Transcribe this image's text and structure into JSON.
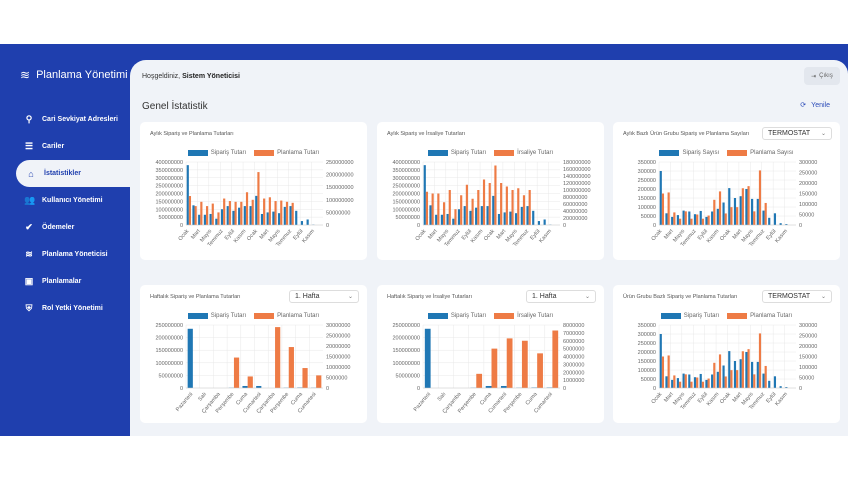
{
  "app": {
    "title": "Planlama Yönetimi"
  },
  "sidebar": {
    "items": [
      {
        "label": "Cari Sevkiyat Adresleri",
        "icon": "user-location-icon",
        "glyph": "⚲"
      },
      {
        "label": "Cariler",
        "icon": "list-icon",
        "glyph": "☰"
      },
      {
        "label": "İstatistikler",
        "icon": "home-icon",
        "glyph": "⌂",
        "active": true
      },
      {
        "label": "Kullanıcı Yönetimi",
        "icon": "users-icon",
        "glyph": "👥"
      },
      {
        "label": "Ödemeler",
        "icon": "check-circle-icon",
        "glyph": "✔"
      },
      {
        "label": "Planlama Yöneticisi",
        "icon": "sliders-icon",
        "glyph": "≋"
      },
      {
        "label": "Planlamalar",
        "icon": "calendar-icon",
        "glyph": "▣"
      },
      {
        "label": "Rol Yetki Yönetimi",
        "icon": "shield-icon",
        "glyph": "⛨"
      }
    ]
  },
  "header": {
    "welcome": "Hoşgeldiniz,",
    "user": "Sistem Yöneticisi",
    "logout": "Çıkış"
  },
  "main": {
    "title": "Genel İstatistik",
    "refresh": "Yenile"
  },
  "colors": {
    "blue": "#1f77b4",
    "orange": "#ee7b45",
    "brand": "#1f3fae"
  },
  "chart_data": [
    {
      "type": "bar",
      "title": "Aylık Sipariş ve Planlama Tutarları",
      "categories": [
        "Ocak",
        "Şubat",
        "Mart",
        "Nisan",
        "Mayıs",
        "Haziran",
        "Temmuz",
        "Ağustos",
        "Eylül",
        "Ekim",
        "Kasım",
        "Aralık",
        "Ocak",
        "Şubat",
        "Mart",
        "Nisan",
        "Mayıs",
        "Haziran",
        "Temmuz",
        "Ağustos",
        "Eylül",
        "Ekim",
        "Kasım",
        "Aralık"
      ],
      "y_left": {
        "min": 0,
        "max": 400000000,
        "step": 50000000
      },
      "y_right": {
        "min": 0,
        "max": 250000000,
        "step": 50000000
      },
      "series": [
        {
          "name": "Sipariş Tutarı",
          "axis": "left",
          "values": [
            380000000,
            125000000,
            65000000,
            65000000,
            70000000,
            40000000,
            100000000,
            120000000,
            90000000,
            110000000,
            120000000,
            120000000,
            185000000,
            70000000,
            80000000,
            85000000,
            75000000,
            115000000,
            120000000,
            90000000,
            25000000,
            35000000,
            2000000,
            0
          ]
        },
        {
          "name": "Planlama Tutarı",
          "axis": "right",
          "values": [
            115000000,
            75000000,
            92000000,
            75000000,
            85000000,
            50000000,
            105000000,
            95000000,
            92000000,
            92000000,
            130000000,
            100000000,
            210000000,
            105000000,
            110000000,
            95000000,
            97000000,
            92000000,
            88000000,
            0,
            0,
            0,
            0,
            0
          ]
        }
      ]
    },
    {
      "type": "bar",
      "title": "Aylık Sipariş ve İrsaliye Tutarları",
      "categories": [
        "Ocak",
        "Şubat",
        "Mart",
        "Nisan",
        "Mayıs",
        "Haziran",
        "Temmuz",
        "Ağustos",
        "Eylül",
        "Ekim",
        "Kasım",
        "Aralık",
        "Ocak",
        "Şubat",
        "Mart",
        "Nisan",
        "Mayıs",
        "Haziran",
        "Temmuz",
        "Ağustos",
        "Eylül",
        "Ekim",
        "Kasım",
        "Aralık"
      ],
      "y_left": {
        "min": 0,
        "max": 400000000,
        "step": 50000000
      },
      "y_right": {
        "min": 0,
        "max": 180000000,
        "step": 20000000
      },
      "series": [
        {
          "name": "Sipariş Tutarı",
          "axis": "left",
          "values": [
            380000000,
            125000000,
            65000000,
            65000000,
            70000000,
            40000000,
            100000000,
            120000000,
            90000000,
            110000000,
            120000000,
            120000000,
            185000000,
            70000000,
            80000000,
            85000000,
            75000000,
            115000000,
            120000000,
            90000000,
            25000000,
            35000000,
            2000000,
            0
          ]
        },
        {
          "name": "İrsaliye Tutarı",
          "axis": "right",
          "values": [
            95000000,
            90000000,
            90000000,
            65000000,
            100000000,
            45000000,
            85000000,
            115000000,
            75000000,
            100000000,
            130000000,
            120000000,
            170000000,
            120000000,
            110000000,
            100000000,
            105000000,
            85000000,
            100000000,
            0,
            0,
            0,
            0,
            0
          ]
        }
      ]
    },
    {
      "type": "bar",
      "title": "Aylık Bazlı Ürün Grubu Sipariş ve Planlama Sayıları",
      "select": "TERMOSTAT",
      "categories": [
        "Ocak",
        "Şubat",
        "Mart",
        "Nisan",
        "Mayıs",
        "Haziran",
        "Temmuz",
        "Ağustos",
        "Eylül",
        "Ekim",
        "Kasım",
        "Aralık",
        "Ocak",
        "Şubat",
        "Mart",
        "Nisan",
        "Mayıs",
        "Haziran",
        "Temmuz",
        "Ağustos",
        "Eylül",
        "Ekim",
        "Kasım",
        "Aralık"
      ],
      "y_left": {
        "min": 0,
        "max": 350000,
        "step": 50000
      },
      "y_right": {
        "min": 0,
        "max": 300000,
        "step": 50000
      },
      "series": [
        {
          "name": "Sipariş Sayısı",
          "axis": "left",
          "values": [
            300000,
            65000,
            45000,
            55000,
            80000,
            75000,
            60000,
            78000,
            45000,
            75000,
            90000,
            125000,
            205000,
            150000,
            160000,
            200000,
            145000,
            145000,
            80000,
            40000,
            65000,
            10000,
            5000,
            0
          ]
        },
        {
          "name": "Planlama Sayısı",
          "axis": "right",
          "values": [
            150000,
            155000,
            60000,
            30000,
            65000,
            30000,
            50000,
            30000,
            45000,
            120000,
            160000,
            55000,
            85000,
            85000,
            175000,
            185000,
            65000,
            260000,
            105000,
            0,
            0,
            0,
            0,
            0
          ]
        }
      ]
    },
    {
      "type": "bar",
      "title": "Haftalık Sipariş ve Planlama Tutarları",
      "select": "1. Hafta",
      "categories": [
        "Pazartesi",
        "Salı",
        "Çarşamba",
        "Perşembe",
        "Cuma",
        "Cumartesi",
        "Çarşamba",
        "Perşembe",
        "Cuma",
        "Cumartesi"
      ],
      "y_left": {
        "min": 0,
        "max": 250000000,
        "step": 50000000
      },
      "y_right": {
        "min": 0,
        "max": 30000000,
        "step": 5000000
      },
      "series": [
        {
          "name": "Sipariş Tutarı",
          "axis": "left",
          "values": [
            235000000,
            0,
            0,
            1000000,
            8000000,
            8000000,
            0,
            1000000,
            2000000,
            1000000
          ]
        },
        {
          "name": "Planlama Tutarı",
          "axis": "right",
          "values": [
            0,
            0,
            0,
            14500000,
            5500000,
            0,
            29000000,
            19500000,
            9500000,
            6000000
          ]
        }
      ]
    },
    {
      "type": "bar",
      "title": "Haftalık Sipariş ve İrsaliye Tutarları",
      "select": "1. Hafta",
      "categories": [
        "Pazartesi",
        "Salı",
        "Çarşamba",
        "Perşembe",
        "Cuma",
        "Cumartesi",
        "Perşembe",
        "Cuma",
        "Cumartesi"
      ],
      "y_left": {
        "min": 0,
        "max": 250000000,
        "step": 50000000
      },
      "y_right": {
        "min": 0,
        "max": 8000000,
        "step": 1000000
      },
      "series": [
        {
          "name": "Sipariş Tutarı",
          "axis": "left",
          "values": [
            235000000,
            0,
            0,
            1000000,
            8000000,
            8000000,
            1000000,
            2000000,
            2000000
          ]
        },
        {
          "name": "İrsaliye Tutarı",
          "axis": "right",
          "values": [
            0,
            0,
            0,
            1800000,
            5000000,
            6300000,
            6000000,
            4400000,
            7300000
          ]
        }
      ]
    },
    {
      "type": "bar",
      "title": "Ürün Grubu Bazlı Sipariş ve Planlama Tutarları",
      "select": "TERMOSTAT",
      "categories": [
        "Ocak",
        "Şubat",
        "Mart",
        "Nisan",
        "Mayıs",
        "Haziran",
        "Temmuz",
        "Ağustos",
        "Eylül",
        "Ekim",
        "Kasım",
        "Aralık",
        "Ocak",
        "Şubat",
        "Mart",
        "Nisan",
        "Mayıs",
        "Haziran",
        "Temmuz",
        "Ağustos",
        "Eylül",
        "Ekim",
        "Kasım",
        "Aralık"
      ],
      "y_left": {
        "min": 0,
        "max": 350000,
        "step": 50000
      },
      "y_right": {
        "min": 0,
        "max": 300000,
        "step": 50000
      },
      "series": [
        {
          "name": "Sipariş Tutarı",
          "axis": "left",
          "values": [
            300000,
            65000,
            45000,
            55000,
            80000,
            75000,
            60000,
            78000,
            45000,
            75000,
            90000,
            125000,
            205000,
            150000,
            160000,
            200000,
            145000,
            145000,
            80000,
            40000,
            65000,
            10000,
            5000,
            0
          ]
        },
        {
          "name": "Planlama Tutarı",
          "axis": "right",
          "values": [
            150000,
            155000,
            60000,
            30000,
            65000,
            30000,
            50000,
            30000,
            45000,
            120000,
            160000,
            55000,
            85000,
            85000,
            175000,
            185000,
            65000,
            260000,
            105000,
            0,
            0,
            0,
            0,
            0
          ]
        }
      ]
    }
  ]
}
